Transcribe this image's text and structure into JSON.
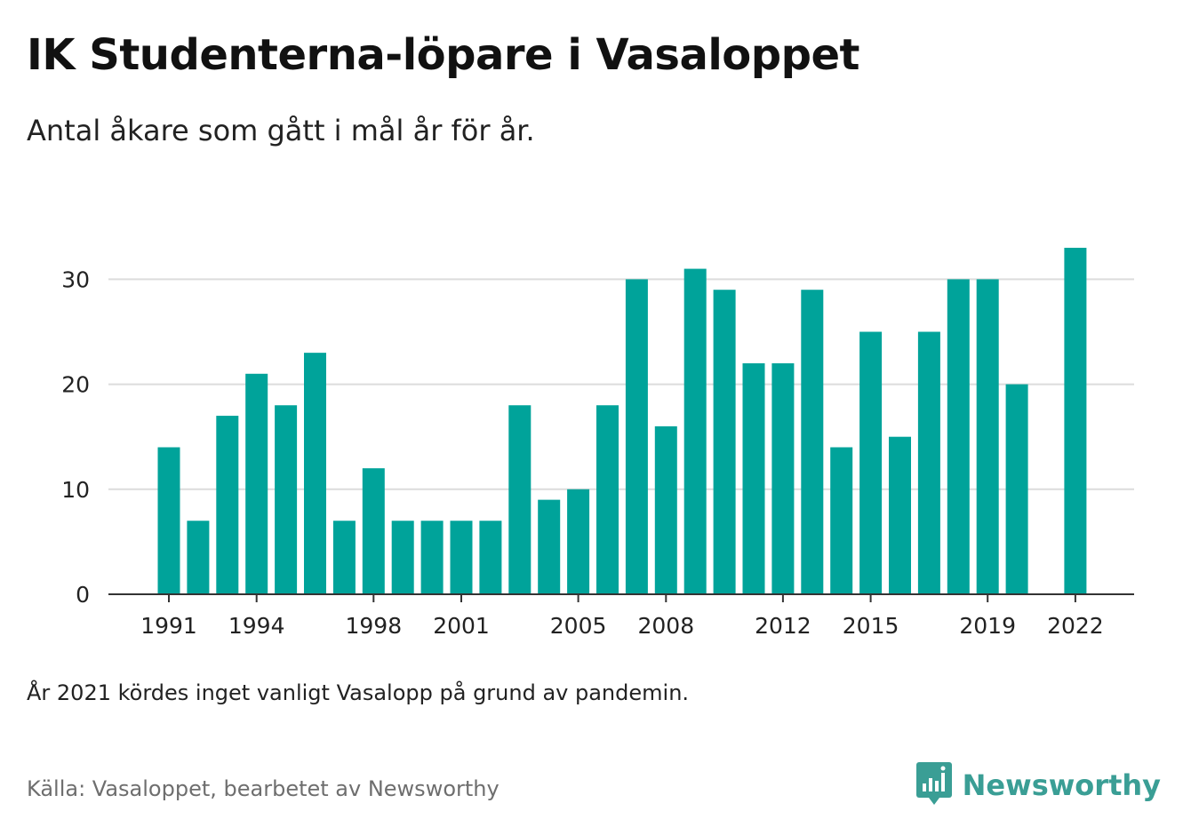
{
  "header": {
    "title": "IK Studenterna-löpare i Vasaloppet",
    "subtitle": "Antal åkare som gått i mål år för år."
  },
  "footer": {
    "note": "År 2021 kördes inget vanligt Vasalopp på grund av pandemin.",
    "source": "Källa: Vasaloppet, bearbetet av Newsworthy",
    "brand": "Newsworthy",
    "brand_icon": "newsworthy-logo-icon"
  },
  "colors": {
    "bar": "#00A39A",
    "grid": "#dcdcdc",
    "axis": "#333333",
    "brand": "#3a9e95"
  },
  "chart_data": {
    "type": "bar",
    "title": "",
    "xlabel": "",
    "ylabel": "",
    "categories": [
      1991,
      1992,
      1993,
      1994,
      1995,
      1996,
      1997,
      1998,
      1999,
      2000,
      2001,
      2002,
      2003,
      2004,
      2005,
      2006,
      2007,
      2008,
      2009,
      2010,
      2011,
      2012,
      2013,
      2014,
      2015,
      2016,
      2017,
      2018,
      2019,
      2020,
      2021,
      2022
    ],
    "values": [
      14,
      7,
      17,
      21,
      18,
      23,
      7,
      12,
      7,
      7,
      7,
      7,
      18,
      9,
      10,
      18,
      30,
      16,
      31,
      29,
      22,
      22,
      29,
      14,
      25,
      15,
      25,
      30,
      30,
      20,
      null,
      33
    ],
    "x_tick_labels": [
      1991,
      1994,
      1998,
      2001,
      2005,
      2008,
      2012,
      2015,
      2019,
      2022
    ],
    "y_ticks": [
      0,
      10,
      20,
      30
    ],
    "ylim": [
      0,
      33
    ],
    "grid": true
  }
}
